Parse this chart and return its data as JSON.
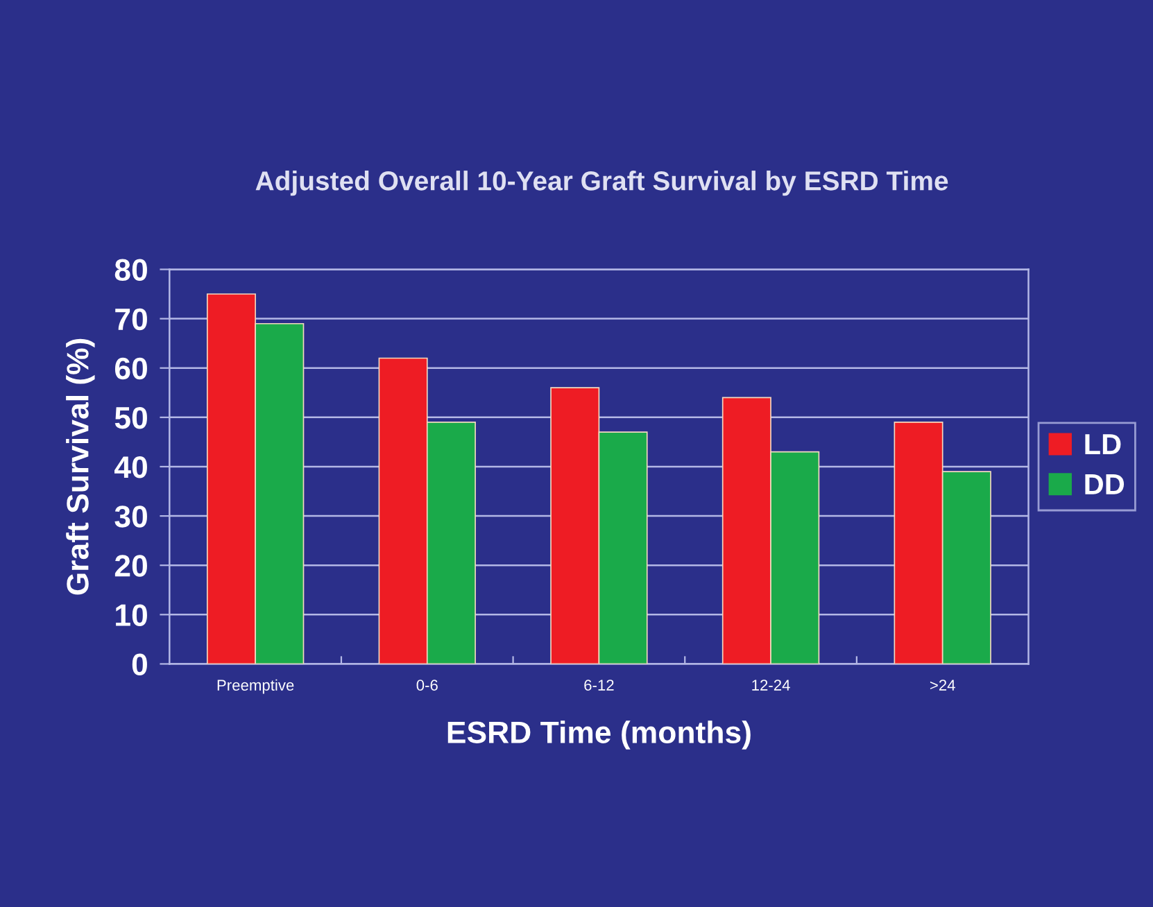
{
  "chart_data": {
    "type": "bar",
    "title": "Adjusted Overall 10-Year Graft Survival by ESRD Time",
    "xlabel": "ESRD Time (months)",
    "ylabel": "Graft Survival (%)",
    "categories": [
      "Preemptive",
      "0-6",
      "6-12",
      "12-24",
      ">24"
    ],
    "series": [
      {
        "name": "LD",
        "color": "#ee1c24",
        "values": [
          75,
          62,
          56,
          54,
          49
        ]
      },
      {
        "name": "DD",
        "color": "#1aaa4a",
        "values": [
          69,
          49,
          47,
          43,
          39
        ]
      }
    ],
    "ylim": [
      0,
      80
    ],
    "yticks": [
      0,
      10,
      20,
      30,
      40,
      50,
      60,
      70,
      80
    ],
    "grid": "y",
    "legend": "right"
  }
}
